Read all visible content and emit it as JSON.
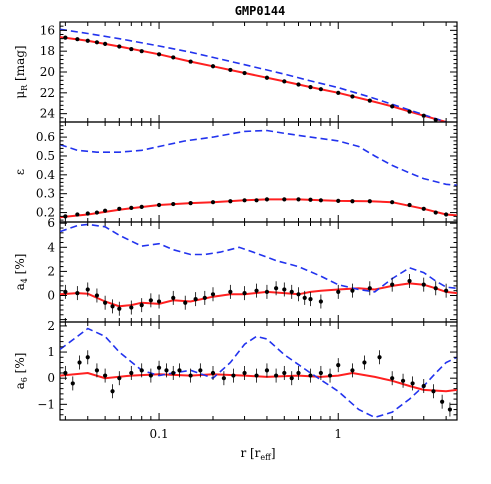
{
  "figure": {
    "title": "GMP0144",
    "xlabel": "r [r_eff]",
    "xlabel_parts": [
      "r [r",
      "eff",
      "]"
    ],
    "xscale": "log",
    "xlim": [
      0.028,
      4.6
    ],
    "x_ticks": [
      0.1,
      1
    ],
    "x_tick_labels": [
      "0.1",
      "1"
    ]
  },
  "colors": {
    "data_points": "#000000",
    "model_fit": "#ff2020",
    "comparison": "#2233ee"
  },
  "chart_data": [
    {
      "type": "line",
      "panel": "mu",
      "ylabel_parts": [
        "μ",
        "R",
        " [mag]"
      ],
      "ylim": [
        24.8,
        15.2
      ],
      "y_inverted": true,
      "y_ticks": [
        16,
        18,
        20,
        22,
        24
      ],
      "y_tick_labels": [
        "16",
        "18",
        "20",
        "22",
        "24"
      ],
      "points": {
        "x": [
          0.03,
          0.035,
          0.04,
          0.045,
          0.05,
          0.06,
          0.07,
          0.08,
          0.1,
          0.12,
          0.15,
          0.2,
          0.25,
          0.3,
          0.4,
          0.5,
          0.6,
          0.7,
          0.8,
          1.0,
          1.2,
          1.5,
          2.0,
          2.5,
          3.0,
          3.5
        ],
        "y": [
          16.7,
          16.85,
          17.0,
          17.15,
          17.3,
          17.55,
          17.8,
          18.0,
          18.3,
          18.6,
          19.0,
          19.45,
          19.8,
          20.1,
          20.55,
          20.9,
          21.2,
          21.45,
          21.65,
          22.0,
          22.35,
          22.75,
          23.3,
          23.8,
          24.2,
          24.6
        ]
      },
      "series": [
        {
          "role": "fit",
          "x": [
            0.028,
            0.04,
            0.06,
            0.1,
            0.15,
            0.2,
            0.3,
            0.5,
            0.7,
            1.0,
            1.5,
            2.0,
            3.0,
            4.0
          ],
          "y": [
            16.65,
            17.0,
            17.55,
            18.3,
            19.0,
            19.45,
            20.1,
            20.9,
            21.45,
            22.0,
            22.75,
            23.3,
            24.2,
            24.8
          ]
        },
        {
          "role": "comparison",
          "x": [
            0.028,
            0.04,
            0.06,
            0.1,
            0.15,
            0.2,
            0.3,
            0.5,
            0.7,
            1.0,
            1.5,
            2.0,
            3.0,
            4.0
          ],
          "y": [
            15.9,
            16.3,
            16.8,
            17.5,
            18.1,
            18.6,
            19.3,
            20.2,
            20.85,
            21.5,
            22.4,
            23.1,
            24.1,
            24.8
          ]
        }
      ]
    },
    {
      "type": "line",
      "panel": "ellipticity",
      "ylabel_parts": [
        "ε"
      ],
      "ylim": [
        0.15,
        0.68
      ],
      "y_ticks": [
        0.2,
        0.3,
        0.4,
        0.5,
        0.6
      ],
      "y_tick_labels": [
        "0.2",
        "0.3",
        "0.4",
        "0.5",
        "0.6"
      ],
      "points": {
        "x": [
          0.03,
          0.035,
          0.04,
          0.045,
          0.05,
          0.06,
          0.07,
          0.08,
          0.1,
          0.12,
          0.15,
          0.2,
          0.25,
          0.3,
          0.35,
          0.4,
          0.5,
          0.6,
          0.7,
          0.8,
          1.0,
          1.2,
          1.5,
          2.0,
          2.5,
          3.0,
          3.5,
          4.0
        ],
        "y": [
          0.18,
          0.19,
          0.195,
          0.2,
          0.21,
          0.22,
          0.225,
          0.23,
          0.24,
          0.245,
          0.25,
          0.255,
          0.26,
          0.265,
          0.265,
          0.27,
          0.27,
          0.27,
          0.268,
          0.265,
          0.262,
          0.26,
          0.26,
          0.255,
          0.24,
          0.22,
          0.2,
          0.19
        ]
      },
      "series": [
        {
          "role": "fit",
          "x": [
            0.028,
            0.04,
            0.06,
            0.1,
            0.15,
            0.2,
            0.3,
            0.4,
            0.6,
            0.8,
            1.0,
            1.5,
            2.0,
            3.0,
            4.0,
            4.6
          ],
          "y": [
            0.175,
            0.19,
            0.215,
            0.24,
            0.25,
            0.255,
            0.265,
            0.27,
            0.27,
            0.265,
            0.262,
            0.26,
            0.255,
            0.22,
            0.19,
            0.185
          ]
        },
        {
          "role": "comparison",
          "x": [
            0.028,
            0.035,
            0.045,
            0.06,
            0.08,
            0.1,
            0.14,
            0.2,
            0.3,
            0.4,
            0.5,
            0.7,
            1.0,
            1.3,
            1.6,
            2.0,
            2.5,
            3.0,
            4.0,
            4.6
          ],
          "y": [
            0.56,
            0.53,
            0.52,
            0.52,
            0.53,
            0.55,
            0.58,
            0.6,
            0.63,
            0.635,
            0.62,
            0.6,
            0.58,
            0.55,
            0.5,
            0.45,
            0.41,
            0.38,
            0.35,
            0.345
          ]
        }
      ]
    },
    {
      "type": "line",
      "panel": "a4",
      "ylabel_parts": [
        "a",
        "4",
        " [%]"
      ],
      "ylim": [
        -2.2,
        6.1
      ],
      "y_ticks": [
        0,
        2,
        4,
        6
      ],
      "y_tick_labels": [
        "0",
        "2",
        "4",
        "6"
      ],
      "points": {
        "x": [
          0.03,
          0.035,
          0.04,
          0.045,
          0.05,
          0.055,
          0.06,
          0.07,
          0.08,
          0.09,
          0.1,
          0.12,
          0.14,
          0.16,
          0.18,
          0.2,
          0.25,
          0.3,
          0.35,
          0.4,
          0.45,
          0.5,
          0.55,
          0.6,
          0.65,
          0.7,
          0.8,
          1.0,
          1.2,
          1.5,
          2.0,
          2.5,
          3.0,
          3.5,
          4.0
        ],
        "y": [
          0.3,
          0.2,
          0.5,
          0.0,
          -0.6,
          -0.9,
          -1.1,
          -1.0,
          -0.8,
          -0.4,
          -0.5,
          -0.2,
          -0.6,
          -0.3,
          -0.2,
          0.1,
          0.3,
          0.2,
          0.4,
          0.3,
          0.6,
          0.5,
          0.3,
          0.1,
          -0.2,
          -0.3,
          -0.5,
          0.3,
          0.4,
          0.6,
          0.9,
          1.2,
          0.9,
          0.6,
          0.4
        ]
      },
      "series": [
        {
          "role": "fit",
          "x": [
            0.028,
            0.035,
            0.04,
            0.05,
            0.06,
            0.07,
            0.08,
            0.1,
            0.12,
            0.15,
            0.2,
            0.25,
            0.3,
            0.4,
            0.5,
            0.6,
            0.7,
            0.8,
            1.0,
            1.3,
            1.6,
            2.0,
            2.5,
            3.0,
            3.5,
            4.0,
            4.6
          ],
          "y": [
            0.1,
            0.2,
            0.15,
            -0.5,
            -0.9,
            -0.8,
            -0.6,
            -0.7,
            -0.4,
            -0.5,
            -0.1,
            0.1,
            0.1,
            0.3,
            0.2,
            0.1,
            0.3,
            0.4,
            0.5,
            0.6,
            0.5,
            0.8,
            1.0,
            0.9,
            0.6,
            0.3,
            0.2
          ]
        },
        {
          "role": "comparison",
          "x": [
            0.028,
            0.035,
            0.04,
            0.05,
            0.06,
            0.08,
            0.1,
            0.12,
            0.15,
            0.18,
            0.22,
            0.28,
            0.35,
            0.45,
            0.6,
            0.8,
            1.0,
            1.3,
            1.6,
            2.0,
            2.5,
            3.0,
            3.5,
            4.0,
            4.6
          ],
          "y": [
            5.3,
            5.8,
            5.9,
            5.7,
            5.0,
            4.1,
            4.3,
            3.8,
            3.4,
            3.4,
            3.6,
            4.0,
            3.5,
            2.9,
            2.4,
            1.6,
            0.9,
            0.5,
            0.3,
            1.4,
            2.3,
            1.9,
            1.2,
            0.7,
            0.6
          ]
        }
      ]
    },
    {
      "type": "line",
      "panel": "a6",
      "ylabel_parts": [
        "a",
        "6",
        " [%]"
      ],
      "ylim": [
        -1.6,
        2.15
      ],
      "y_ticks": [
        -1,
        0,
        1,
        2
      ],
      "y_tick_labels": [
        "−1",
        "0",
        "1",
        "2"
      ],
      "points": {
        "x": [
          0.03,
          0.033,
          0.036,
          0.04,
          0.045,
          0.05,
          0.055,
          0.06,
          0.07,
          0.08,
          0.09,
          0.1,
          0.11,
          0.12,
          0.13,
          0.15,
          0.17,
          0.2,
          0.23,
          0.26,
          0.3,
          0.35,
          0.4,
          0.45,
          0.5,
          0.55,
          0.6,
          0.7,
          0.8,
          0.9,
          1.0,
          1.2,
          1.4,
          1.7,
          2.0,
          2.3,
          2.6,
          3.0,
          3.4,
          3.8,
          4.2
        ],
        "y": [
          0.2,
          -0.2,
          0.6,
          0.8,
          0.3,
          0.1,
          -0.5,
          0.0,
          0.2,
          0.3,
          0.1,
          0.4,
          0.3,
          0.2,
          0.3,
          0.1,
          0.3,
          0.2,
          0.0,
          0.1,
          0.2,
          0.1,
          0.3,
          0.1,
          0.2,
          0.0,
          0.2,
          0.1,
          0.2,
          0.1,
          0.5,
          0.3,
          0.6,
          0.8,
          0.0,
          -0.1,
          -0.2,
          -0.3,
          -0.5,
          -0.9,
          -1.2
        ]
      },
      "series": [
        {
          "role": "fit",
          "x": [
            0.028,
            0.04,
            0.05,
            0.07,
            0.1,
            0.15,
            0.2,
            0.3,
            0.4,
            0.6,
            0.8,
            1.0,
            1.2,
            1.6,
            2.0,
            2.5,
            3.0,
            4.0,
            4.6
          ],
          "y": [
            0.1,
            0.2,
            0.0,
            0.1,
            0.15,
            0.1,
            0.15,
            0.1,
            0.05,
            0.1,
            0.05,
            0.1,
            0.2,
            0.05,
            -0.1,
            -0.3,
            -0.45,
            -0.5,
            -0.45
          ]
        },
        {
          "role": "comparison",
          "x": [
            0.028,
            0.035,
            0.04,
            0.05,
            0.06,
            0.08,
            0.1,
            0.12,
            0.15,
            0.2,
            0.25,
            0.3,
            0.35,
            0.4,
            0.5,
            0.7,
            1.0,
            1.3,
            1.6,
            2.0,
            2.5,
            3.0,
            3.5,
            4.0,
            4.6
          ],
          "y": [
            1.1,
            1.6,
            1.9,
            1.6,
            1.0,
            0.3,
            0.1,
            0.2,
            0.3,
            0.0,
            0.6,
            1.3,
            1.6,
            1.5,
            0.9,
            0.2,
            -0.5,
            -1.2,
            -1.5,
            -1.3,
            -0.8,
            -0.3,
            0.2,
            0.6,
            0.8
          ]
        }
      ]
    }
  ]
}
